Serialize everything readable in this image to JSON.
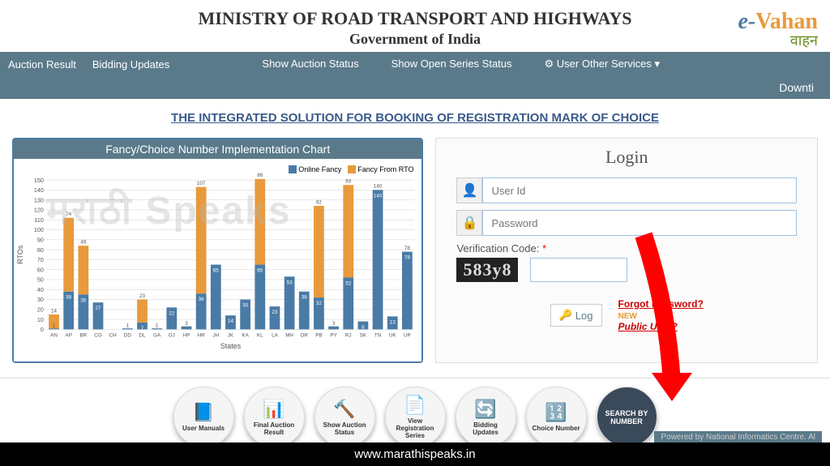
{
  "header": {
    "title": "MINISTRY OF ROAD TRANSPORT AND HIGHWAYS",
    "subtitle": "Government of India",
    "logo_e": "e-",
    "logo_vahan": "Vahan",
    "logo_hindi": "वाहन"
  },
  "navbar": {
    "left": [
      "Auction Result",
      "Bidding Updates"
    ],
    "right": [
      "Show Auction Status",
      "Show Open Series Status",
      "User Other Services"
    ],
    "dropdown_icon": "▾"
  },
  "notice": "Downti",
  "main_title": "THE INTEGRATED SOLUTION FOR BOOKING OF REGISTRATION MARK OF CHOICE",
  "chart": {
    "title": "Fancy/Choice Number Implementation Chart",
    "ylabel": "RTOs",
    "xlabel": "States",
    "watermark": "मराठी Speaks",
    "legend": [
      {
        "label": "Online Fancy",
        "color": "#4a7ba6"
      },
      {
        "label": "Fancy From RTO",
        "color": "#e89a3c"
      }
    ],
    "ymax": 150,
    "ytick": 10,
    "states": [
      "AN",
      "AP",
      "BR",
      "CG",
      "CH",
      "DD",
      "DL",
      "GA",
      "GJ",
      "HP",
      "HR",
      "JH",
      "JK",
      "KA",
      "KL",
      "LA",
      "MH",
      "OR",
      "PB",
      "PY",
      "RJ",
      "SK",
      "TN",
      "UK",
      "UP"
    ],
    "online_fancy": [
      1,
      38,
      35,
      27,
      0,
      1,
      7,
      1,
      22,
      3,
      36,
      65,
      14,
      30,
      65,
      23,
      53,
      38,
      32,
      3,
      52,
      8,
      140,
      13,
      78
    ],
    "fancy_rto": [
      14,
      74,
      49,
      0,
      0,
      0,
      23,
      0,
      0,
      0,
      107,
      0,
      0,
      0,
      86,
      0,
      0,
      0,
      92,
      0,
      93,
      0,
      0,
      0,
      0
    ],
    "labels_top": {
      "0": "14",
      "1": "74",
      "2": "49",
      "6": "23",
      "10": "107",
      "14": "86",
      "18": "92",
      "20": "93",
      "22": "140",
      "24": "78"
    },
    "bar_color_online": "#4a7ba6",
    "bar_color_rto": "#e89a3c",
    "grid_color": "#cccccc"
  },
  "login": {
    "title": "Login",
    "userid_placeholder": "User Id",
    "password_placeholder": "Password",
    "verif_label": "Verification Code:",
    "captcha": "583y8",
    "login_btn": "Log",
    "forgot": "Forgot Password?",
    "new_label": "NEW",
    "public": "Public User?"
  },
  "circles": [
    {
      "label": "User Manuals",
      "icon": "📘"
    },
    {
      "label": "Final Auction Result",
      "icon": "📊"
    },
    {
      "label": "Show Auction Status",
      "icon": "🔨"
    },
    {
      "label": "View Registration Series",
      "icon": "📄"
    },
    {
      "label": "Bidding Updates",
      "icon": "🔄"
    },
    {
      "label": "Choice Number",
      "icon": "🔢"
    },
    {
      "label": "SEARCH BY NUMBER",
      "icon": "",
      "dark": true
    }
  ],
  "footer": "www.marathispeaks.in",
  "footer_right": "Powered by National Informatics Centre. Al",
  "arrow_color": "#ff0000"
}
